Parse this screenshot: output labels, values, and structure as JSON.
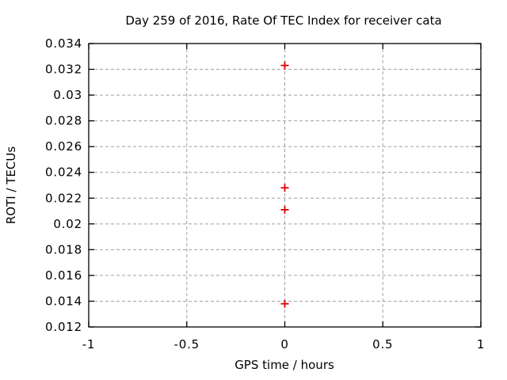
{
  "chart_data": {
    "type": "scatter",
    "title": "Day 259 of 2016, Rate Of TEC Index for receiver cata",
    "xlabel": "GPS time / hours",
    "ylabel": "ROTI / TECUs",
    "xlim": [
      -1,
      1
    ],
    "ylim": [
      0.012,
      0.034
    ],
    "xticks": {
      "values": [
        -1,
        -0.5,
        0,
        0.5,
        1
      ],
      "labels": [
        "-1",
        "-0.5",
        "0",
        "0.5",
        "1"
      ]
    },
    "yticks": {
      "values": [
        0.012,
        0.014,
        0.016,
        0.018,
        0.02,
        0.022,
        0.024,
        0.026,
        0.028,
        0.03,
        0.032,
        0.034
      ],
      "labels": [
        "0.012",
        "0.014",
        "0.016",
        "0.018",
        "0.02",
        "0.022",
        "0.024",
        "0.026",
        "0.028",
        "0.03",
        "0.032",
        "0.034"
      ]
    },
    "grid": true,
    "grid_style": "dashed",
    "legend": "none",
    "colors": {
      "marker": "#dd0000",
      "grid": "#a0a0a0",
      "axis": "#000000",
      "background": "#ffffff"
    },
    "series": [
      {
        "marker": "plus",
        "color": "#dd0000",
        "x": [
          0,
          0,
          0,
          0
        ],
        "y": [
          0.0323,
          0.0228,
          0.0211,
          0.0138
        ]
      }
    ]
  }
}
